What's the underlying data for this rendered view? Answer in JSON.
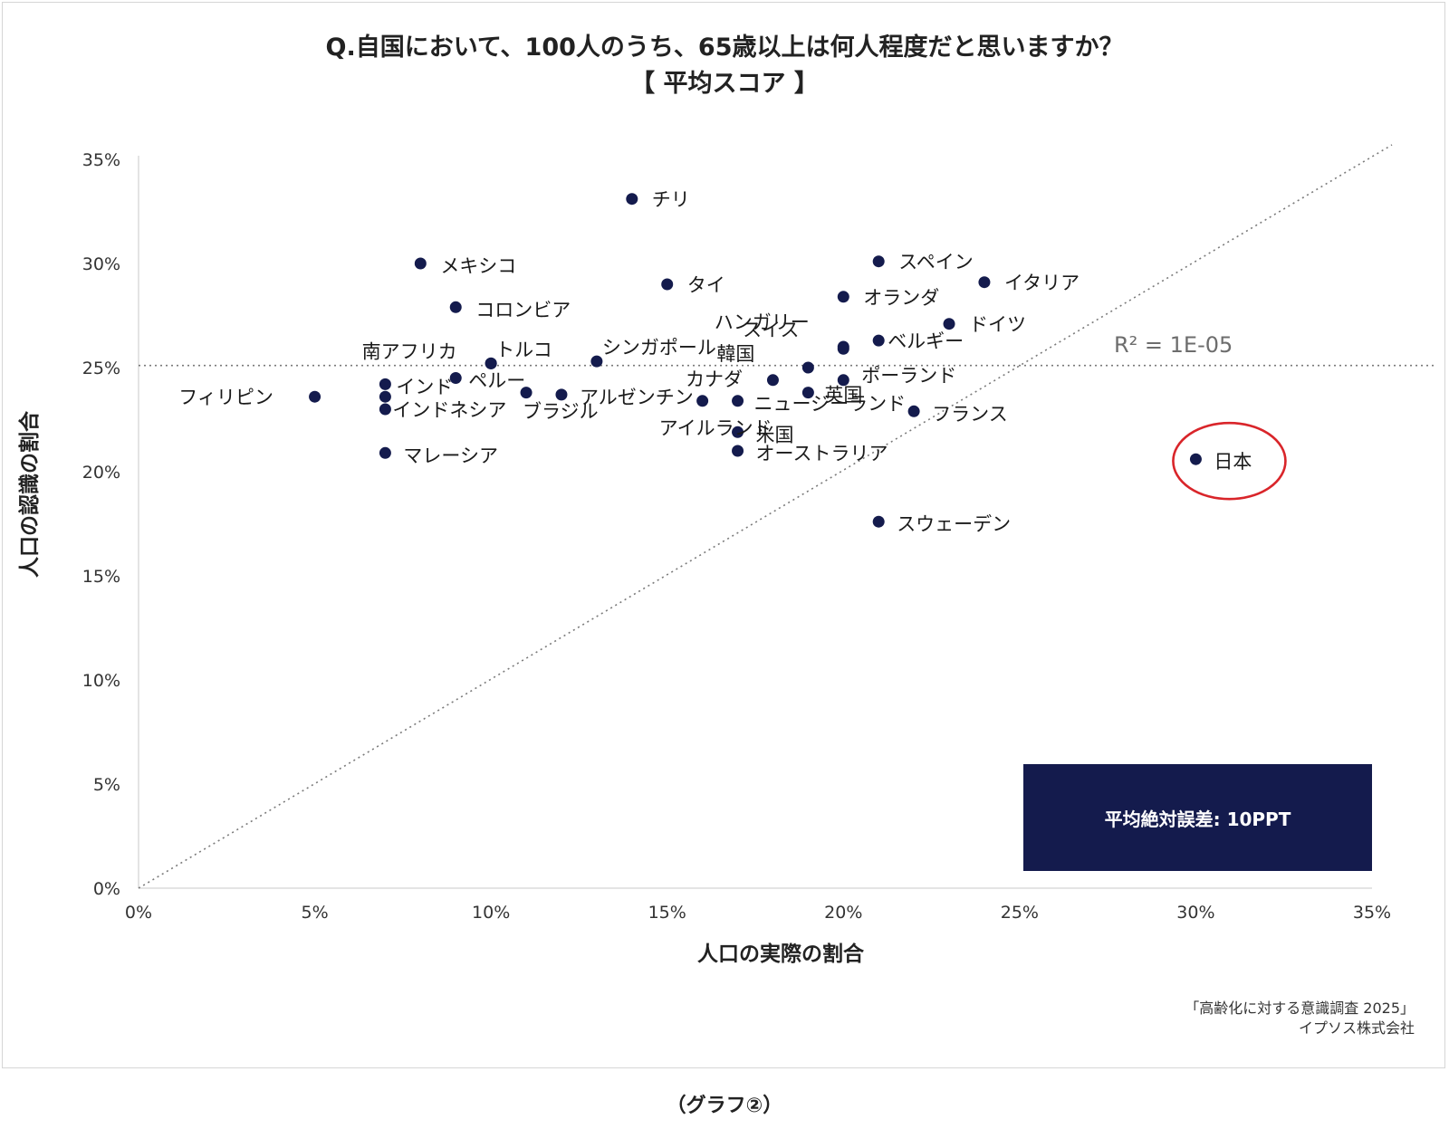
{
  "page": {
    "title_line1": "Q.自国において、100人のうち、65歳以上は何人程度だと思いますか？",
    "title_line2": "【 平均スコア 】",
    "source_line1": "「高齢化に対する意識調査 2025」",
    "source_line2": "イプソス株式会社",
    "caption": "（グラフ②）",
    "mae_label": "平均絶対誤差: 10PPT",
    "r2_label": "R² = 1E-05"
  },
  "colors": {
    "point": "#141b4d",
    "box": "#141b4d",
    "highlight_circle": "#d9252a",
    "guide_line": "#7a7a7a"
  },
  "chart_data": {
    "type": "scatter",
    "title": "Q.自国において、100人のうち、65歳以上は何人程度だと思いますか？ 【 平均スコア 】",
    "xlabel": "人口の実際の割合",
    "ylabel": "人口の認識の割合",
    "xlim": [
      0,
      35
    ],
    "ylim": [
      0,
      35
    ],
    "x_ticks": [
      "0%",
      "5%",
      "10%",
      "15%",
      "20%",
      "25%",
      "30%",
      "35%"
    ],
    "y_ticks": [
      "0%",
      "5%",
      "10%",
      "15%",
      "20%",
      "25%",
      "30%",
      "35%"
    ],
    "grid": false,
    "mean_line_y": 25.1,
    "diagonal_line": true,
    "highlight": "日本",
    "points": [
      {
        "label": "チリ",
        "x": 14,
        "y": 33.1
      },
      {
        "label": "メキシコ",
        "x": 8,
        "y": 30.0
      },
      {
        "label": "スペイン",
        "x": 21,
        "y": 30.1
      },
      {
        "label": "イタリア",
        "x": 24,
        "y": 29.1
      },
      {
        "label": "タイ",
        "x": 15,
        "y": 29.0
      },
      {
        "label": "オランダ",
        "x": 20,
        "y": 28.4
      },
      {
        "label": "コロンビア",
        "x": 9,
        "y": 27.9
      },
      {
        "label": "ドイツ",
        "x": 23,
        "y": 27.1
      },
      {
        "label": "ハンガリー",
        "x": 20,
        "y": 26.0
      },
      {
        "label": "スイス",
        "x": 20,
        "y": 25.9
      },
      {
        "label": "ベルギー",
        "x": 21,
        "y": 26.3
      },
      {
        "label": "韓国",
        "x": 19,
        "y": 25.0
      },
      {
        "label": "南アフリカ",
        "x": 10,
        "y": 25.2
      },
      {
        "label": "トルコ",
        "x": 10,
        "y": 25.2
      },
      {
        "label": "シンガポール",
        "x": 13,
        "y": 25.3
      },
      {
        "label": "ペルー",
        "x": 9,
        "y": 24.5
      },
      {
        "label": "カナダ",
        "x": 18,
        "y": 24.4
      },
      {
        "label": "ポーランド",
        "x": 20,
        "y": 24.4
      },
      {
        "label": "英国",
        "x": 19,
        "y": 23.8
      },
      {
        "label": "インド",
        "x": 7,
        "y": 24.2
      },
      {
        "label": "フィリピン",
        "x": 5,
        "y": 23.6
      },
      {
        "label": "インドネシア",
        "x": 7,
        "y": 23.6
      },
      {
        "label": "ブラジル",
        "x": 11,
        "y": 23.8
      },
      {
        "label": "アルゼンチン",
        "x": 12,
        "y": 23.7
      },
      {
        "label": "ニュージーランド",
        "x": 17,
        "y": 23.4
      },
      {
        "label": "アイルランド",
        "x": 16,
        "y": 23.4
      },
      {
        "label": "インドネシア2",
        "x": 7,
        "y": 23.0
      },
      {
        "label": "フランス",
        "x": 22,
        "y": 22.9
      },
      {
        "label": "米国",
        "x": 17,
        "y": 21.9
      },
      {
        "label": "オーストラリア",
        "x": 17,
        "y": 21.0
      },
      {
        "label": "マレーシア",
        "x": 7,
        "y": 20.9
      },
      {
        "label": "日本",
        "x": 30,
        "y": 20.6
      },
      {
        "label": "スウェーデン",
        "x": 21,
        "y": 17.6
      }
    ]
  }
}
